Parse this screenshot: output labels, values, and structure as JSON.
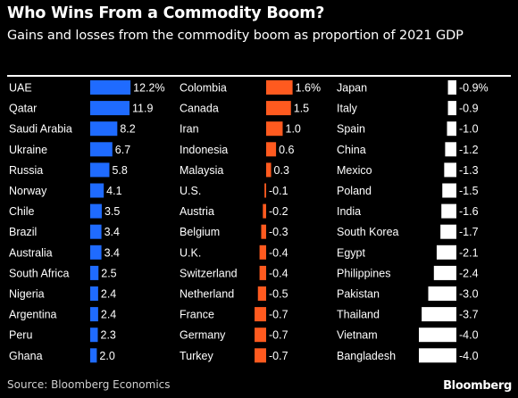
{
  "header": {
    "title": "Who Wins From a Commodity Boom?",
    "subtitle": "Gains and losses from the commodity boom as proportion of 2021 GDP"
  },
  "footer": {
    "source": "Source: Bloomberg Economics",
    "brand": "Bloomberg"
  },
  "colors": {
    "blue": "#1f6bff",
    "orange": "#ff5a1f",
    "white": "#ffffff",
    "background": "#000000"
  },
  "chart_data": {
    "type": "bar",
    "orientation": "horizontal",
    "title": "Who Wins From a Commodity Boom?",
    "subtitle": "Gains and losses from the commodity boom as proportion of 2021 GDP",
    "columns": [
      {
        "color": "blue",
        "categories": [
          "UAE",
          "Qatar",
          "Saudi Arabia",
          "Ukraine",
          "Russia",
          "Norway",
          "Chile",
          "Brazil",
          "Australia",
          "South Africa",
          "Nigeria",
          "Argentina",
          "Peru",
          "Ghana"
        ],
        "values": [
          12.2,
          11.9,
          8.2,
          6.7,
          5.8,
          4.1,
          3.5,
          3.4,
          3.4,
          2.5,
          2.4,
          2.4,
          2.3,
          2.0
        ],
        "labels": [
          "12.2%",
          "11.9",
          "8.2",
          "6.7",
          "5.8",
          "4.1",
          "3.5",
          "3.4",
          "3.4",
          "2.5",
          "2.4",
          "2.4",
          "2.3",
          "2.0"
        ]
      },
      {
        "color": "orange",
        "categories": [
          "Colombia",
          "Canada",
          "Iran",
          "Indonesia",
          "Malaysia",
          "U.S.",
          "Austria",
          "Belgium",
          "U.K.",
          "Switzerland",
          "Netherland",
          "France",
          "Germany",
          "Turkey"
        ],
        "values": [
          1.6,
          1.5,
          1.0,
          0.6,
          0.3,
          -0.1,
          -0.2,
          -0.3,
          -0.4,
          -0.4,
          -0.5,
          -0.7,
          -0.7,
          -0.7
        ],
        "labels": [
          "1.6%",
          "1.5",
          "1.0",
          "0.6",
          "0.3",
          "-0.1",
          "-0.2",
          "-0.3",
          "-0.4",
          "-0.4",
          "-0.5",
          "-0.7",
          "-0.7",
          "-0.7"
        ]
      },
      {
        "color": "white",
        "categories": [
          "Japan",
          "Italy",
          "Spain",
          "China",
          "Mexico",
          "Poland",
          "India",
          "South Korea",
          "Egypt",
          "Philippines",
          "Pakistan",
          "Thailand",
          "Vietnam",
          "Bangladesh"
        ],
        "values": [
          -0.9,
          -0.9,
          -1.0,
          -1.2,
          -1.3,
          -1.5,
          -1.6,
          -1.7,
          -2.1,
          -2.4,
          -3.0,
          -3.7,
          -4.0,
          -4.0
        ],
        "labels": [
          "-0.9%",
          "-0.9",
          "-1.0",
          "-1.2",
          "-1.3",
          "-1.5",
          "-1.6",
          "-1.7",
          "-2.1",
          "-2.4",
          "-3.0",
          "-3.7",
          "-4.0",
          "-4.0"
        ]
      }
    ],
    "legend": "none",
    "grid": false
  }
}
